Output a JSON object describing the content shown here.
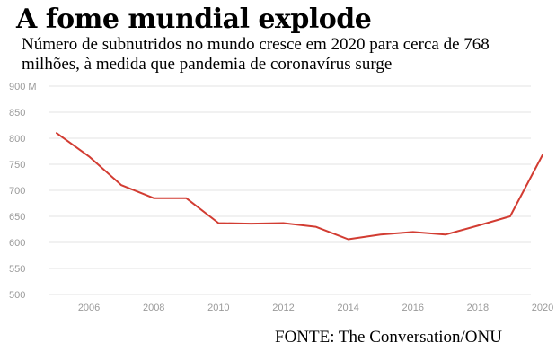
{
  "title": "A fome mundial explode",
  "subtitle": "Número de subnutridos no mundo cresce em 2020 para cerca de 768 milhões, à medida que pandemia de coronavírus surge",
  "source": "FONTE: The Conversation/ONU",
  "chart_data": {
    "type": "line",
    "x": [
      2005,
      2006,
      2007,
      2008,
      2009,
      2010,
      2011,
      2012,
      2013,
      2014,
      2015,
      2016,
      2017,
      2018,
      2019,
      2020
    ],
    "series": [
      {
        "values": [
          810,
          765,
          710,
          685,
          685,
          637,
          636,
          637,
          630,
          606,
          615,
          620,
          615,
          632,
          650,
          768
        ],
        "color": "#d23c32"
      }
    ],
    "xlabel": "",
    "ylabel": "",
    "xlim": [
      2005,
      2020
    ],
    "ylim": [
      500,
      900
    ],
    "y_ticks": [
      500,
      550,
      600,
      650,
      700,
      750,
      800,
      850,
      900
    ],
    "y_tick_labels": [
      "500",
      "550",
      "600",
      "650",
      "700",
      "750",
      "800",
      "850",
      "900 M"
    ],
    "x_ticks": [
      2006,
      2008,
      2010,
      2012,
      2014,
      2016,
      2018,
      2020
    ],
    "x_tick_labels": [
      "2006",
      "2008",
      "2010",
      "2012",
      "2014",
      "2016",
      "2018",
      "2020"
    ],
    "grid": true,
    "legend": "none"
  }
}
